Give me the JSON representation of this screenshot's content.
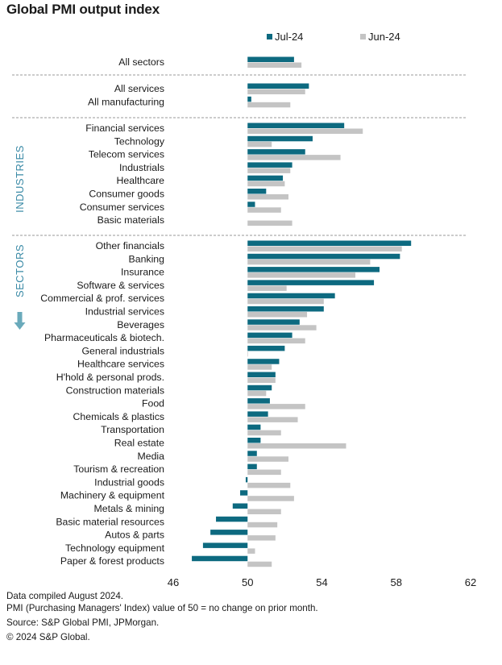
{
  "chart_data": {
    "type": "bar",
    "orientation": "horizontal",
    "title": "Global PMI output index",
    "xlabel": "",
    "ylabel": "",
    "xlim": [
      46,
      62
    ],
    "baseline": 50,
    "xticks": [
      46,
      50,
      54,
      58,
      62
    ],
    "grid": false,
    "legend_position": "top",
    "colors": {
      "Jul-24": "#0d6a80",
      "Jun-24": "#c4c4c4",
      "group_label": "#3a8aa6",
      "divider": "#9a9a9a"
    },
    "series": [
      {
        "name": "Jul-24"
      },
      {
        "name": "Jun-24"
      }
    ],
    "groups": [
      {
        "label": "",
        "rows": [
          {
            "category": "All sectors",
            "jul": 52.5,
            "jun": 52.9
          }
        ]
      },
      {
        "label": "",
        "rows": [
          {
            "category": "All services",
            "jul": 53.3,
            "jun": 53.1
          },
          {
            "category": "All manufacturing",
            "jul": 50.2,
            "jun": 52.3
          }
        ]
      },
      {
        "label": "INDUSTRIES",
        "rows": [
          {
            "category": "Financial services",
            "jul": 55.2,
            "jun": 56.2
          },
          {
            "category": "Technology",
            "jul": 53.5,
            "jun": 51.3
          },
          {
            "category": "Telecom services",
            "jul": 53.1,
            "jun": 55.0
          },
          {
            "category": "Industrials",
            "jul": 52.4,
            "jun": 52.3
          },
          {
            "category": "Healthcare",
            "jul": 51.9,
            "jun": 52.0
          },
          {
            "category": "Consumer goods",
            "jul": 51.0,
            "jun": 52.2
          },
          {
            "category": "Consumer services",
            "jul": 50.4,
            "jun": 51.8
          },
          {
            "category": "Basic materials",
            "jul": 50.0,
            "jun": 52.4
          }
        ]
      },
      {
        "label": "SECTORS",
        "arrow": "down-arrow",
        "rows": [
          {
            "category": "Other financials",
            "jul": 58.8,
            "jun": 58.3
          },
          {
            "category": "Banking",
            "jul": 58.2,
            "jun": 56.6
          },
          {
            "category": "Insurance",
            "jul": 57.1,
            "jun": 55.8
          },
          {
            "category": "Software & services",
            "jul": 56.8,
            "jun": 52.1
          },
          {
            "category": "Commercial & prof. services",
            "jul": 54.7,
            "jun": 54.1
          },
          {
            "category": "Industrial services",
            "jul": 54.1,
            "jun": 53.2
          },
          {
            "category": "Beverages",
            "jul": 52.8,
            "jun": 53.7
          },
          {
            "category": "Pharmaceuticals & biotech.",
            "jul": 52.4,
            "jun": 53.1
          },
          {
            "category": "General industrials",
            "jul": 52.0,
            "jun": 50.0
          },
          {
            "category": "Healthcare services",
            "jul": 51.7,
            "jun": 51.3
          },
          {
            "category": "H'hold & personal prods.",
            "jul": 51.5,
            "jun": 51.5
          },
          {
            "category": "Construction materials",
            "jul": 51.3,
            "jun": 51.0
          },
          {
            "category": "Food",
            "jul": 51.2,
            "jun": 53.1
          },
          {
            "category": "Chemicals & plastics",
            "jul": 51.1,
            "jun": 52.7
          },
          {
            "category": "Transportation",
            "jul": 50.7,
            "jun": 51.8
          },
          {
            "category": "Real estate",
            "jul": 50.7,
            "jun": 55.3
          },
          {
            "category": "Media",
            "jul": 50.5,
            "jun": 52.2
          },
          {
            "category": "Tourism & recreation",
            "jul": 50.5,
            "jun": 51.8
          },
          {
            "category": "Industrial goods",
            "jul": 49.9,
            "jun": 52.3
          },
          {
            "category": "Machinery & equipment",
            "jul": 49.6,
            "jun": 52.5
          },
          {
            "category": "Metals & mining",
            "jul": 49.2,
            "jun": 51.8
          },
          {
            "category": "Basic material resources",
            "jul": 48.3,
            "jun": 51.6
          },
          {
            "category": "Autos & parts",
            "jul": 48.0,
            "jun": 51.5
          },
          {
            "category": "Technology equipment",
            "jul": 47.6,
            "jun": 50.4
          },
          {
            "category": "Paper & forest products",
            "jul": 47.0,
            "jun": 51.3
          }
        ]
      }
    ]
  },
  "legend": {
    "jul_label": "Jul-24",
    "jun_label": "Jun-24"
  },
  "footer": {
    "line1": "Data compiled August 2024.",
    "line2": "PMI (Purchasing Managers' Index) value of 50 = no change on prior month.",
    "line3": "Source: S&P Global PMI, JPMorgan.",
    "line4": "© 2024 S&P Global."
  }
}
